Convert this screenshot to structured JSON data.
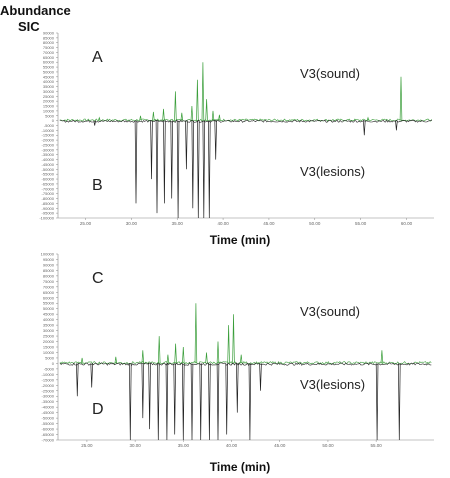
{
  "header": {
    "line1": "Abundance",
    "line2": "SIC"
  },
  "colors": {
    "sound": "#3a9e3a",
    "lesions": "#222222",
    "axis": "#888888"
  },
  "chart_data": [
    {
      "type": "line",
      "panel": "top",
      "xlabel": "Time (min)",
      "x_ticks": [
        "25.00",
        "30.00",
        "35.00",
        "40.00",
        "45.00",
        "50.00",
        "55.00",
        "60.00"
      ],
      "x_range": [
        22,
        63
      ],
      "y_ticks": [
        "90000",
        "85000",
        "80000",
        "75000",
        "70000",
        "65000",
        "60000",
        "55000",
        "50000",
        "45000",
        "40000",
        "35000",
        "30000",
        "25000",
        "20000",
        "15000",
        "10000",
        "5000",
        "0",
        "-5000",
        "-10000",
        "-15000",
        "-20000",
        "-25000",
        "-30000",
        "-35000",
        "-40000",
        "-45000",
        "-50000",
        "-55000",
        "-60000",
        "-65000",
        "-70000",
        "-75000",
        "-80000",
        "-85000",
        "-90000",
        "-95000",
        "-100000"
      ],
      "ylim": [
        -100000,
        90000
      ],
      "letters": [
        "A",
        "B"
      ],
      "series": [
        {
          "name": "V3(sound)",
          "direction": "up",
          "peaks": [
            {
              "x": 26.5,
              "y": 3000
            },
            {
              "x": 31.0,
              "y": 5000
            },
            {
              "x": 32.4,
              "y": 9000
            },
            {
              "x": 33.5,
              "y": 12000
            },
            {
              "x": 34.8,
              "y": 30000
            },
            {
              "x": 35.5,
              "y": 8000
            },
            {
              "x": 36.6,
              "y": 15000
            },
            {
              "x": 37.2,
              "y": 42000
            },
            {
              "x": 37.8,
              "y": 60000
            },
            {
              "x": 38.2,
              "y": 22000
            },
            {
              "x": 38.9,
              "y": 10000
            },
            {
              "x": 39.6,
              "y": 6000
            },
            {
              "x": 55.8,
              "y": 3000
            },
            {
              "x": 59.4,
              "y": 45000
            }
          ]
        },
        {
          "name": "V3(lesions)",
          "direction": "down",
          "peaks": [
            {
              "x": 26.0,
              "y": -5000
            },
            {
              "x": 30.5,
              "y": -85000
            },
            {
              "x": 32.2,
              "y": -60000
            },
            {
              "x": 32.8,
              "y": -95000
            },
            {
              "x": 33.6,
              "y": -85000
            },
            {
              "x": 34.4,
              "y": -80000
            },
            {
              "x": 35.1,
              "y": -100000
            },
            {
              "x": 36.0,
              "y": -50000
            },
            {
              "x": 36.7,
              "y": -90000
            },
            {
              "x": 37.3,
              "y": -100000
            },
            {
              "x": 37.9,
              "y": -100000
            },
            {
              "x": 38.5,
              "y": -100000
            },
            {
              "x": 39.2,
              "y": -40000
            },
            {
              "x": 55.4,
              "y": -15000
            },
            {
              "x": 58.9,
              "y": -10000
            }
          ]
        }
      ]
    },
    {
      "type": "line",
      "panel": "bottom",
      "xlabel": "Time (min)",
      "x_ticks": [
        "25.00",
        "30.00",
        "35.00",
        "40.00",
        "45.00",
        "50.00",
        "55.00"
      ],
      "x_range": [
        22,
        61
      ],
      "y_ticks": [
        "100000",
        "95000",
        "90000",
        "85000",
        "80000",
        "75000",
        "70000",
        "65000",
        "60000",
        "55000",
        "50000",
        "45000",
        "40000",
        "35000",
        "30000",
        "25000",
        "20000",
        "15000",
        "10000",
        "5000",
        "0",
        "-5000",
        "-10000",
        "-15000",
        "-20000",
        "-25000",
        "-30000",
        "-35000",
        "-40000",
        "-45000",
        "-50000",
        "-55000",
        "-60000",
        "-65000",
        "-70000"
      ],
      "ylim": [
        -70000,
        100000
      ],
      "letters": [
        "C",
        "D"
      ],
      "series": [
        {
          "name": "V3(sound)",
          "direction": "up",
          "peaks": [
            {
              "x": 24.5,
              "y": 5000
            },
            {
              "x": 28.0,
              "y": 6000
            },
            {
              "x": 30.8,
              "y": 12000
            },
            {
              "x": 32.5,
              "y": 25000
            },
            {
              "x": 33.4,
              "y": 8000
            },
            {
              "x": 34.2,
              "y": 18000
            },
            {
              "x": 35.0,
              "y": 15000
            },
            {
              "x": 36.3,
              "y": 55000
            },
            {
              "x": 37.4,
              "y": 10000
            },
            {
              "x": 38.6,
              "y": 20000
            },
            {
              "x": 39.7,
              "y": 35000
            },
            {
              "x": 40.2,
              "y": 45000
            },
            {
              "x": 41.0,
              "y": 8000
            },
            {
              "x": 55.6,
              "y": 12000
            }
          ]
        },
        {
          "name": "V3(lesions)",
          "direction": "down",
          "peaks": [
            {
              "x": 24.0,
              "y": -30000
            },
            {
              "x": 25.5,
              "y": -22000
            },
            {
              "x": 29.5,
              "y": -70000
            },
            {
              "x": 30.8,
              "y": -50000
            },
            {
              "x": 31.5,
              "y": -60000
            },
            {
              "x": 32.4,
              "y": -70000
            },
            {
              "x": 33.3,
              "y": -70000
            },
            {
              "x": 34.1,
              "y": -65000
            },
            {
              "x": 35.0,
              "y": -70000
            },
            {
              "x": 35.9,
              "y": -70000
            },
            {
              "x": 36.8,
              "y": -70000
            },
            {
              "x": 37.7,
              "y": -70000
            },
            {
              "x": 38.6,
              "y": -70000
            },
            {
              "x": 39.5,
              "y": -65000
            },
            {
              "x": 40.6,
              "y": -45000
            },
            {
              "x": 41.9,
              "y": -70000
            },
            {
              "x": 43.0,
              "y": -25000
            },
            {
              "x": 55.1,
              "y": -70000
            },
            {
              "x": 57.4,
              "y": -70000
            }
          ]
        }
      ]
    }
  ]
}
